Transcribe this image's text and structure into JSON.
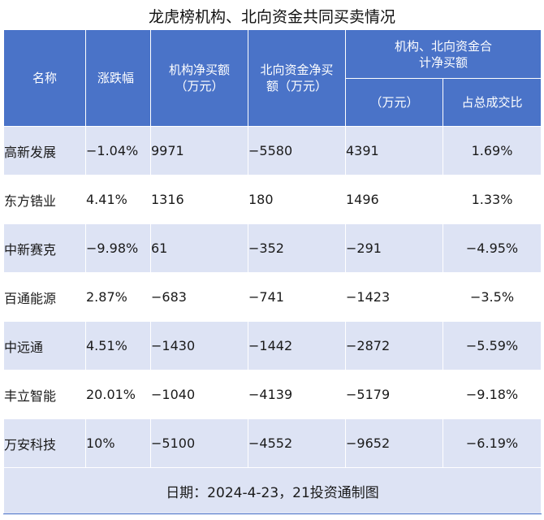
{
  "title": "龙虎榜机构、北向资金共同买卖情况",
  "headers": {
    "name": "名称",
    "change": "涨跌幅",
    "inst_net": "机构净买额（万元）",
    "north_net": "北向资金净买额（万元）",
    "combined": "机构、北向资金合计净买额",
    "combined_amount": "（万元）",
    "combined_ratio": "占总成交比"
  },
  "rows": [
    {
      "name": "高新发展",
      "change": "−1.04%",
      "inst_net": "9971",
      "north_net": "−5580",
      "combined_amount": "4391",
      "combined_ratio": "1.69%"
    },
    {
      "name": "东方锆业",
      "change": "4.41%",
      "inst_net": "1316",
      "north_net": "180",
      "combined_amount": "1496",
      "combined_ratio": "1.33%"
    },
    {
      "name": "中新赛克",
      "change": "−9.98%",
      "inst_net": "61",
      "north_net": "−352",
      "combined_amount": "−291",
      "combined_ratio": "−4.95%"
    },
    {
      "name": "百通能源",
      "change": "2.87%",
      "inst_net": "−683",
      "north_net": "−741",
      "combined_amount": "−1423",
      "combined_ratio": "−3.5%"
    },
    {
      "name": "中远通",
      "change": "4.51%",
      "inst_net": "−1430",
      "north_net": "−1442",
      "combined_amount": "−2872",
      "combined_ratio": "−5.59%"
    },
    {
      "name": "丰立智能",
      "change": "20.01%",
      "inst_net": "−1040",
      "north_net": "−4139",
      "combined_amount": "−5179",
      "combined_ratio": "−9.18%"
    },
    {
      "name": "万安科技",
      "change": "10%",
      "inst_net": "−5100",
      "north_net": "−4552",
      "combined_amount": "−9652",
      "combined_ratio": "−6.19%"
    }
  ],
  "footer": "日期：2024-4-23，21投资通制图"
}
